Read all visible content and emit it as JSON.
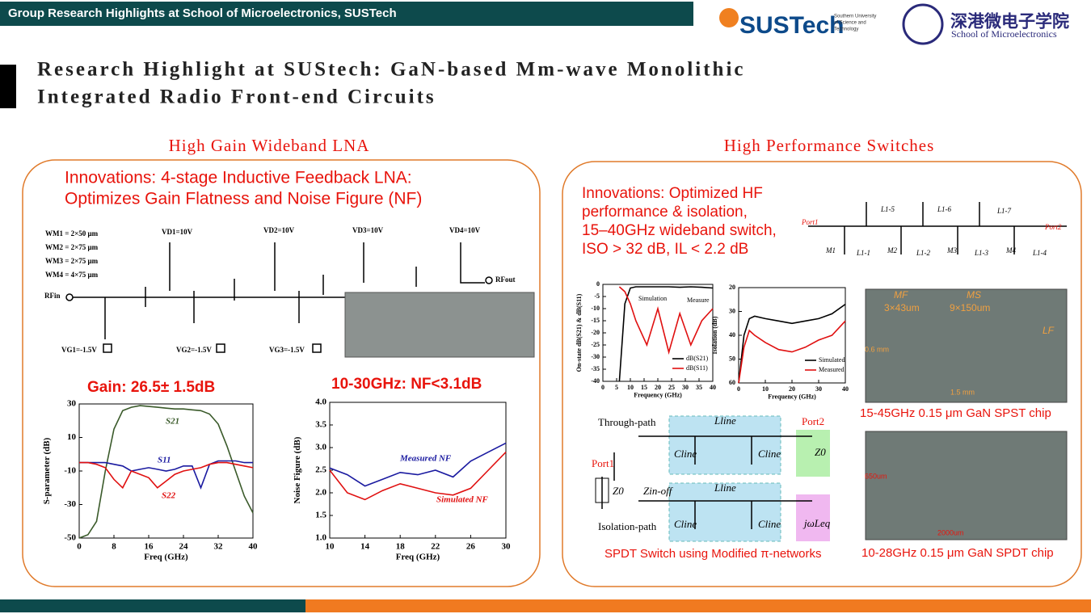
{
  "header": {
    "banner": "Group Research Highlights at School of Microelectronics, SUSTech",
    "logo1": "SUSTech",
    "logo1_sub": [
      "Southern University",
      "of Science and",
      "Technology"
    ],
    "logo2": "深港微电子学院",
    "logo2_sub": "School of Microelectronics"
  },
  "title": [
    "Research Highlight at SUStech: GaN-based Mm-wave Monolithic",
    "Integrated Radio Front-end Circuits"
  ],
  "left": {
    "heading": "High Gain Wideband LNA",
    "innovation": [
      "Innovations: 4-stage Inductive Feedback LNA:",
      "Optimizes Gain Flatness and Noise Figure (NF)"
    ],
    "widths": [
      "WM1 = 2×50 μm",
      "WM2 = 2×75 μm",
      "WM3 = 2×75 μm",
      "WM4 = 4×75 μm"
    ],
    "drain_bias": [
      "VD1=10V",
      "VD2=10V",
      "VD3=10V",
      "VD4=10V"
    ],
    "gate_bias": [
      "VG1=-1.5V",
      "VG2=-1.5V",
      "VG3=-1.5V"
    ],
    "rf_in": "RFin",
    "rf_out": "RFout",
    "gain": "Gain: 26.5± 1.5dB",
    "nf": "10-30GHz: NF<3.1dB"
  },
  "right": {
    "heading": "High Performance Switches",
    "innovation": [
      "Innovations:  Optimized  HF",
      "performance & isolation,",
      "15–40GHz wideband switch,",
      "ISO > 32 dB, IL < 2.2 dB"
    ],
    "switch_labels": [
      "Port1",
      "Port2",
      "M1",
      "M2",
      "M3",
      "M4",
      "L1-1",
      "L1-2",
      "L1-3",
      "L1-4",
      "L1-5",
      "L1-6",
      "L1-7"
    ],
    "sim_meas": [
      "Simulation",
      "Measure"
    ],
    "spdt": {
      "through": "Through-path",
      "isolation": "Isolation-path",
      "port1": "Port1",
      "port2": "Port2",
      "lline": "Lline",
      "cline": "Cline",
      "z0": "Z0",
      "zin": "Zin-off",
      "jwl": "jωLeq",
      "caption": "SPDT Switch using Modified π-networks"
    },
    "chip1": {
      "labels": [
        "MF",
        "MS",
        "3×43um",
        "9×150um",
        "LF",
        "0.6 mm",
        "1.5 mm"
      ],
      "caption": "15-45GHz 0.15 μm GaN SPST chip"
    },
    "chip2": {
      "labels": [
        "650um",
        "2000um"
      ],
      "caption": "10-28GHz 0.15 μm GaN SPDT chip"
    }
  },
  "charts": [
    {
      "type": "line",
      "xlabel": "Freq (GHz)",
      "ylabel": "S-parameter (dB)",
      "legend": "inline",
      "x": [
        0,
        2,
        4,
        6,
        8,
        10,
        12,
        14,
        16,
        18,
        20,
        22,
        24,
        26,
        28,
        30,
        32,
        34,
        36,
        38,
        40
      ],
      "xlim": [
        0,
        40
      ],
      "xticks": [
        0,
        8,
        16,
        24,
        32,
        40
      ],
      "ylim": [
        -50,
        30
      ],
      "yticks": [
        -50,
        -30,
        -10,
        10,
        30
      ],
      "series": [
        {
          "name": "S21",
          "color": "#3a5a2a",
          "values": [
            -50,
            -48,
            -40,
            -10,
            15,
            26,
            28,
            29,
            28.5,
            28,
            27.5,
            27,
            27,
            26.5,
            26,
            24,
            18,
            5,
            -10,
            -25,
            -35
          ]
        },
        {
          "name": "S11",
          "color": "#1a1aa0",
          "values": [
            -5,
            -5,
            -5,
            -5,
            -6,
            -7,
            -10,
            -9,
            -8,
            -9,
            -10,
            -9,
            -7,
            -7,
            -20,
            -6,
            -4,
            -4,
            -4,
            -5,
            -5
          ]
        },
        {
          "name": "S22",
          "color": "#e01010",
          "values": [
            -5,
            -5,
            -6,
            -8,
            -15,
            -20,
            -10,
            -12,
            -14,
            -20,
            -16,
            -12,
            -10,
            -9,
            -8,
            -6,
            -5,
            -5,
            -6,
            -7,
            -8
          ]
        }
      ]
    },
    {
      "type": "line",
      "xlabel": "Freq (GHz)",
      "ylabel": "Noise Figure (dB)",
      "legend": "inline",
      "x": [
        10,
        12,
        14,
        16,
        18,
        20,
        22,
        24,
        26,
        28,
        30
      ],
      "xlim": [
        10,
        30
      ],
      "xticks": [
        10,
        14,
        18,
        22,
        26,
        30
      ],
      "ylim": [
        1,
        4
      ],
      "yticks": [
        {
          "value": 1,
          "label": "1.0"
        },
        1.5,
        {
          "value": 2,
          "label": "2.0"
        },
        2.5,
        {
          "value": 3,
          "label": "3.0"
        },
        3.5,
        {
          "value": 4,
          "label": "4.0"
        }
      ],
      "series": [
        {
          "name": "Measured NF",
          "color": "#1a1aa0",
          "values": [
            2.55,
            2.4,
            2.15,
            2.3,
            2.45,
            2.4,
            2.5,
            2.35,
            2.7,
            2.9,
            3.1
          ]
        },
        {
          "name": "Simulated NF",
          "color": "#e01010",
          "values": [
            2.5,
            2.0,
            1.85,
            2.05,
            2.2,
            2.1,
            2.0,
            1.95,
            2.1,
            2.5,
            2.9
          ]
        }
      ]
    },
    {
      "type": "line",
      "xlabel": "Frequency (GHz)",
      "ylabel": "On-state dB(S21) & dB(S11)",
      "legend": "lower right",
      "x": [
        6,
        8,
        10,
        12,
        16,
        20,
        24,
        28,
        32,
        36,
        40
      ],
      "xlim": [
        0,
        40
      ],
      "xticks": [
        0,
        5,
        10,
        15,
        20,
        25,
        30,
        35,
        40
      ],
      "ylim": [
        -40,
        0
      ],
      "yticks": [
        0,
        -5,
        -10,
        -15,
        -20,
        -25,
        -30,
        -35,
        -40
      ],
      "series": [
        {
          "name": "dB(S21)",
          "color": "#000000",
          "values": [
            -40,
            -8,
            -1.5,
            -1,
            -1,
            -1,
            -1,
            -1.2,
            -1,
            -1.2,
            -1.5
          ]
        },
        {
          "name": "dB(S11)",
          "color": "#e01010",
          "values": [
            -1,
            -3,
            -8,
            -15,
            -25,
            -10,
            -28,
            -12,
            -25,
            -15,
            -10
          ]
        }
      ]
    },
    {
      "type": "line",
      "xlabel": "Frequency (GHz)",
      "ylabel": "Isolation (dB)",
      "legend": "lower right",
      "x": [
        0,
        2,
        4,
        6,
        10,
        15,
        20,
        25,
        30,
        35,
        40
      ],
      "xlim": [
        0,
        40
      ],
      "xticks": [
        0,
        10,
        20,
        30,
        40
      ],
      "ylim": [
        60,
        20
      ],
      "yticks": [
        20,
        30,
        40,
        50,
        60
      ],
      "series": [
        {
          "name": "Simulated",
          "color": "#000000",
          "values": [
            60,
            40,
            33,
            32,
            33,
            34,
            35,
            34,
            33,
            31,
            27
          ]
        },
        {
          "name": "Measured",
          "color": "#e01010",
          "values": [
            60,
            45,
            38,
            40,
            43,
            46,
            47,
            45,
            42,
            40,
            34
          ]
        }
      ]
    }
  ]
}
